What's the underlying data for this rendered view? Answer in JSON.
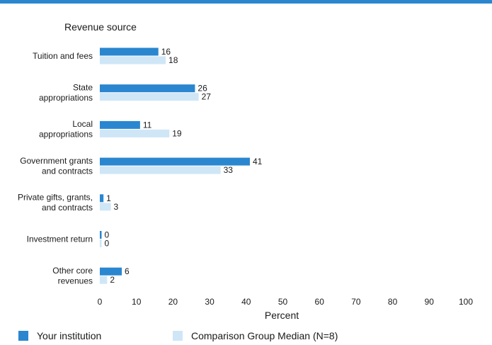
{
  "chart_data": {
    "type": "bar",
    "orientation": "horizontal",
    "category_axis_title": "Revenue source",
    "xlabel": "Percent",
    "xlim": [
      0,
      100
    ],
    "xticks": [
      0,
      10,
      20,
      30,
      40,
      50,
      60,
      70,
      80,
      90,
      100
    ],
    "categories": [
      [
        "Tuition and fees"
      ],
      [
        "State",
        "appropriations"
      ],
      [
        "Local",
        "appropriations"
      ],
      [
        "Government grants",
        "and contracts"
      ],
      [
        "Private gifts, grants,",
        "and contracts"
      ],
      [
        "Investment return"
      ],
      [
        "Other core",
        "revenues"
      ]
    ],
    "series": [
      {
        "name": "Your institution",
        "color": "#2a86cf",
        "values": [
          16,
          26,
          11,
          41,
          1,
          0,
          6
        ]
      },
      {
        "name": "Comparison Group Median (N=8)",
        "color": "#cfe6f7",
        "values": [
          18,
          27,
          19,
          33,
          3,
          0,
          2
        ]
      }
    ],
    "data_labels": true,
    "grid": false,
    "legend_position": "bottom"
  }
}
